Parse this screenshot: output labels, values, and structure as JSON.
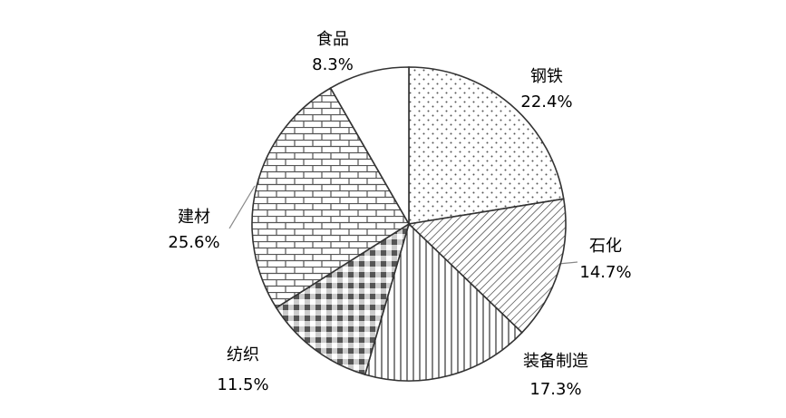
{
  "chart_data": {
    "type": "pie",
    "categories": [
      "钢铁",
      "石化",
      "装备制造",
      "纺织",
      "建材",
      "食品"
    ],
    "values": [
      22.4,
      14.7,
      17.3,
      11.5,
      25.6,
      8.3
    ],
    "value_labels": [
      "22.4%",
      "14.7%",
      "17.3%",
      "11.5%",
      "25.6%",
      "8.3%"
    ]
  }
}
